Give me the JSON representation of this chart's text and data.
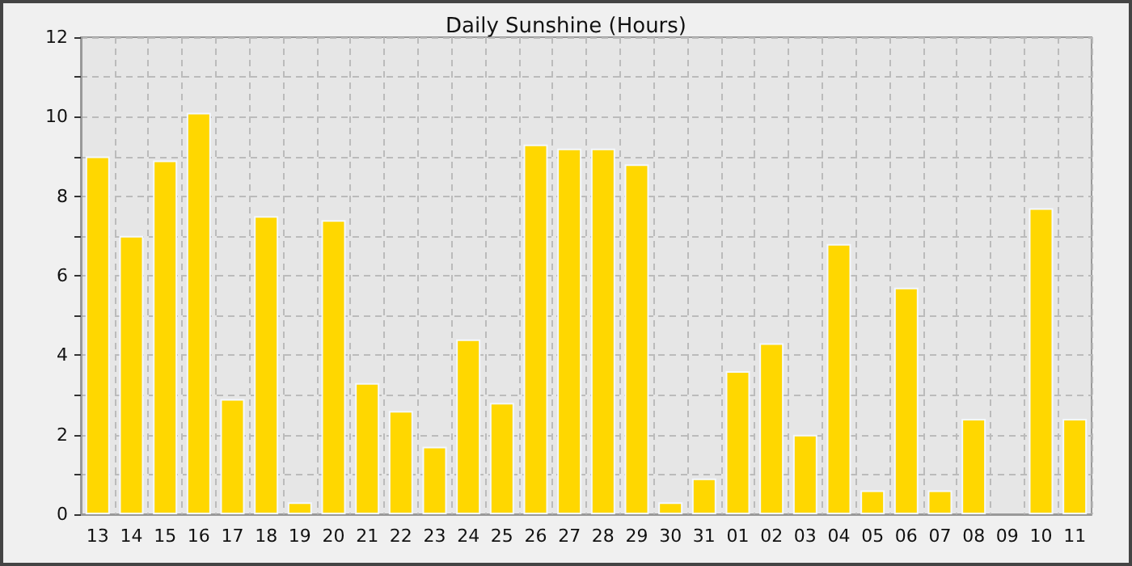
{
  "chart_data": {
    "type": "bar",
    "title": "Daily Sunshine (Hours)",
    "categories": [
      "13",
      "14",
      "15",
      "16",
      "17",
      "18",
      "19",
      "20",
      "21",
      "22",
      "23",
      "24",
      "25",
      "26",
      "27",
      "28",
      "29",
      "30",
      "31",
      "01",
      "02",
      "03",
      "04",
      "05",
      "06",
      "07",
      "08",
      "09",
      "10",
      "11"
    ],
    "values": [
      9.0,
      7.0,
      8.9,
      10.1,
      2.9,
      7.5,
      0.3,
      7.4,
      3.3,
      2.6,
      1.7,
      4.4,
      2.8,
      9.3,
      9.2,
      9.2,
      8.8,
      0.3,
      0.9,
      3.6,
      4.3,
      2.0,
      6.8,
      0.6,
      5.7,
      0.6,
      2.4,
      0,
      7.7,
      2.4
    ],
    "color": "#ffd700",
    "ylim": [
      0,
      12
    ],
    "yticks": [
      0,
      {
        "value": 1,
        "label": null
      },
      2,
      {
        "value": 3,
        "label": null
      },
      4,
      {
        "value": 5,
        "label": null
      },
      6,
      {
        "value": 7,
        "label": null
      },
      8,
      {
        "value": 9,
        "label": null
      },
      10,
      {
        "value": 11,
        "label": null
      },
      12
    ],
    "grid": true
  }
}
